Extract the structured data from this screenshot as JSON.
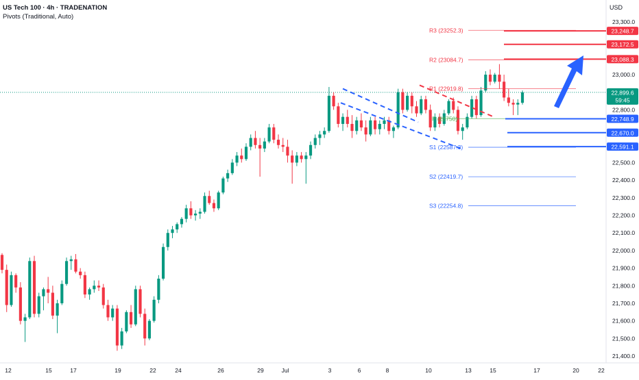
{
  "legend": {
    "title": "US Tech 100 · 4h · TRADENATION",
    "subtitle": "Pivots (Traditional, Auto)"
  },
  "currency_label": "USD",
  "last_price": "22,899.6",
  "countdown": "59:45",
  "colors": {
    "up": "#089981",
    "down": "#f23645",
    "resistance": "#f23645",
    "support": "#2962ff",
    "pivot": "#4caf50",
    "arrow": "#2962ff",
    "axis_text": "#131722"
  },
  "chart_data": {
    "type": "candlestick",
    "title": "US Tech 100 · 4h · TRADENATION",
    "ylim": [
      21390,
      23330
    ],
    "y_ticks": [
      21400,
      21500,
      21600,
      21700,
      21800,
      21900,
      22000,
      22100,
      22200,
      22300,
      22400,
      22500,
      22600,
      22700,
      22800,
      22900,
      23000,
      23100,
      23200,
      23300
    ],
    "y_tick_labels": [
      "21,400.0",
      "21,500.0",
      "21,600.0",
      "21,700.0",
      "21,800.0",
      "21,900.0",
      "22,000.0",
      "22,100.0",
      "22,200.0",
      "22,300.0",
      "22,400.0",
      "22,500.0",
      "22,600.0",
      "22,700.0",
      "22,800.0",
      "22,900.0",
      "23,000.0",
      "23,100.0",
      "23,200.0",
      "23,300.0"
    ],
    "x_labels": [
      "12",
      "15",
      "17",
      "19",
      "22",
      "24",
      "26",
      "29",
      "Jul",
      "3",
      "6",
      "8",
      "10",
      "13",
      "15",
      "17",
      "20",
      "22"
    ],
    "candles": [
      {
        "o": 21975,
        "h": 21985,
        "l": 21870,
        "c": 21890
      },
      {
        "o": 21890,
        "h": 21920,
        "l": 21650,
        "c": 21690
      },
      {
        "o": 21690,
        "h": 21880,
        "l": 21680,
        "c": 21860
      },
      {
        "o": 21860,
        "h": 21870,
        "l": 21760,
        "c": 21790
      },
      {
        "o": 21790,
        "h": 21820,
        "l": 21580,
        "c": 21600
      },
      {
        "o": 21600,
        "h": 21640,
        "l": 21480,
        "c": 21620
      },
      {
        "o": 21620,
        "h": 21960,
        "l": 21610,
        "c": 21940
      },
      {
        "o": 21940,
        "h": 21970,
        "l": 21620,
        "c": 21640
      },
      {
        "o": 21640,
        "h": 21760,
        "l": 21620,
        "c": 21740
      },
      {
        "o": 21740,
        "h": 21790,
        "l": 21660,
        "c": 21780
      },
      {
        "o": 21780,
        "h": 21850,
        "l": 21700,
        "c": 21760
      },
      {
        "o": 21760,
        "h": 21800,
        "l": 21610,
        "c": 21630
      },
      {
        "o": 21630,
        "h": 21720,
        "l": 21530,
        "c": 21700
      },
      {
        "o": 21700,
        "h": 21830,
        "l": 21690,
        "c": 21810
      },
      {
        "o": 21810,
        "h": 21960,
        "l": 21800,
        "c": 21940
      },
      {
        "o": 21940,
        "h": 21970,
        "l": 21890,
        "c": 21950
      },
      {
        "o": 21950,
        "h": 21980,
        "l": 21870,
        "c": 21880
      },
      {
        "o": 21880,
        "h": 21900,
        "l": 21840,
        "c": 21860
      },
      {
        "o": 21860,
        "h": 21880,
        "l": 21730,
        "c": 21750
      },
      {
        "o": 21750,
        "h": 21790,
        "l": 21720,
        "c": 21780
      },
      {
        "o": 21780,
        "h": 21830,
        "l": 21760,
        "c": 21800
      },
      {
        "o": 21800,
        "h": 21830,
        "l": 21770,
        "c": 21790
      },
      {
        "o": 21790,
        "h": 21810,
        "l": 21670,
        "c": 21690
      },
      {
        "o": 21690,
        "h": 21720,
        "l": 21600,
        "c": 21620
      },
      {
        "o": 21620,
        "h": 21690,
        "l": 21600,
        "c": 21670
      },
      {
        "o": 21670,
        "h": 21690,
        "l": 21430,
        "c": 21460
      },
      {
        "o": 21460,
        "h": 21560,
        "l": 21440,
        "c": 21540
      },
      {
        "o": 21540,
        "h": 21660,
        "l": 21530,
        "c": 21650
      },
      {
        "o": 21650,
        "h": 21690,
        "l": 21560,
        "c": 21580
      },
      {
        "o": 21580,
        "h": 21800,
        "l": 21570,
        "c": 21780
      },
      {
        "o": 21780,
        "h": 21800,
        "l": 21620,
        "c": 21640
      },
      {
        "o": 21640,
        "h": 21670,
        "l": 21460,
        "c": 21500
      },
      {
        "o": 21500,
        "h": 21610,
        "l": 21490,
        "c": 21600
      },
      {
        "o": 21600,
        "h": 21740,
        "l": 21590,
        "c": 21720
      },
      {
        "o": 21720,
        "h": 21860,
        "l": 21700,
        "c": 21840
      },
      {
        "o": 21840,
        "h": 22040,
        "l": 21830,
        "c": 22020
      },
      {
        "o": 22020,
        "h": 22120,
        "l": 22000,
        "c": 22100
      },
      {
        "o": 22100,
        "h": 22140,
        "l": 22070,
        "c": 22120
      },
      {
        "o": 22120,
        "h": 22160,
        "l": 22100,
        "c": 22150
      },
      {
        "o": 22150,
        "h": 22190,
        "l": 22130,
        "c": 22180
      },
      {
        "o": 22180,
        "h": 22260,
        "l": 22160,
        "c": 22240
      },
      {
        "o": 22240,
        "h": 22280,
        "l": 22180,
        "c": 22200
      },
      {
        "o": 22200,
        "h": 22230,
        "l": 22170,
        "c": 22210
      },
      {
        "o": 22210,
        "h": 22240,
        "l": 22180,
        "c": 22220
      },
      {
        "o": 22220,
        "h": 22330,
        "l": 22210,
        "c": 22310
      },
      {
        "o": 22310,
        "h": 22340,
        "l": 22260,
        "c": 22270
      },
      {
        "o": 22270,
        "h": 22290,
        "l": 22220,
        "c": 22240
      },
      {
        "o": 22240,
        "h": 22340,
        "l": 22230,
        "c": 22330
      },
      {
        "o": 22330,
        "h": 22420,
        "l": 22320,
        "c": 22410
      },
      {
        "o": 22410,
        "h": 22460,
        "l": 22390,
        "c": 22440
      },
      {
        "o": 22440,
        "h": 22520,
        "l": 22430,
        "c": 22500
      },
      {
        "o": 22500,
        "h": 22560,
        "l": 22480,
        "c": 22540
      },
      {
        "o": 22540,
        "h": 22580,
        "l": 22500,
        "c": 22520
      },
      {
        "o": 22520,
        "h": 22610,
        "l": 22510,
        "c": 22590
      },
      {
        "o": 22590,
        "h": 22660,
        "l": 22570,
        "c": 22640
      },
      {
        "o": 22640,
        "h": 22680,
        "l": 22580,
        "c": 22600
      },
      {
        "o": 22600,
        "h": 22640,
        "l": 22420,
        "c": 22580
      },
      {
        "o": 22580,
        "h": 22640,
        "l": 22560,
        "c": 22620
      },
      {
        "o": 22620,
        "h": 22720,
        "l": 22610,
        "c": 22700
      },
      {
        "o": 22700,
        "h": 22720,
        "l": 22610,
        "c": 22630
      },
      {
        "o": 22630,
        "h": 22660,
        "l": 22580,
        "c": 22600
      },
      {
        "o": 22600,
        "h": 22640,
        "l": 22560,
        "c": 22590
      },
      {
        "o": 22590,
        "h": 22630,
        "l": 22500,
        "c": 22540
      },
      {
        "o": 22540,
        "h": 22570,
        "l": 22380,
        "c": 22500
      },
      {
        "o": 22500,
        "h": 22560,
        "l": 22480,
        "c": 22540
      },
      {
        "o": 22540,
        "h": 22560,
        "l": 22500,
        "c": 22520
      },
      {
        "o": 22520,
        "h": 22560,
        "l": 22380,
        "c": 22540
      },
      {
        "o": 22540,
        "h": 22620,
        "l": 22520,
        "c": 22600
      },
      {
        "o": 22600,
        "h": 22660,
        "l": 22580,
        "c": 22640
      },
      {
        "o": 22640,
        "h": 22680,
        "l": 22600,
        "c": 22660
      },
      {
        "o": 22660,
        "h": 22700,
        "l": 22640,
        "c": 22680
      },
      {
        "o": 22680,
        "h": 22930,
        "l": 22670,
        "c": 22880
      },
      {
        "o": 22880,
        "h": 22900,
        "l": 22800,
        "c": 22820
      },
      {
        "o": 22820,
        "h": 22840,
        "l": 22700,
        "c": 22720
      },
      {
        "o": 22720,
        "h": 22780,
        "l": 22680,
        "c": 22760
      },
      {
        "o": 22760,
        "h": 22800,
        "l": 22700,
        "c": 22720
      },
      {
        "o": 22720,
        "h": 22770,
        "l": 22640,
        "c": 22680
      },
      {
        "o": 22680,
        "h": 22760,
        "l": 22660,
        "c": 22740
      },
      {
        "o": 22740,
        "h": 22780,
        "l": 22680,
        "c": 22700
      },
      {
        "o": 22700,
        "h": 22740,
        "l": 22620,
        "c": 22660
      },
      {
        "o": 22660,
        "h": 22760,
        "l": 22650,
        "c": 22740
      },
      {
        "o": 22740,
        "h": 22760,
        "l": 22660,
        "c": 22690
      },
      {
        "o": 22690,
        "h": 22740,
        "l": 22660,
        "c": 22720
      },
      {
        "o": 22720,
        "h": 22760,
        "l": 22690,
        "c": 22740
      },
      {
        "o": 22740,
        "h": 22760,
        "l": 22660,
        "c": 22680
      },
      {
        "o": 22680,
        "h": 22710,
        "l": 22640,
        "c": 22700
      },
      {
        "o": 22700,
        "h": 22920,
        "l": 22690,
        "c": 22900
      },
      {
        "o": 22900,
        "h": 22920,
        "l": 22780,
        "c": 22800
      },
      {
        "o": 22800,
        "h": 22900,
        "l": 22790,
        "c": 22880
      },
      {
        "o": 22880,
        "h": 22900,
        "l": 22780,
        "c": 22820
      },
      {
        "o": 22820,
        "h": 22850,
        "l": 22760,
        "c": 22780
      },
      {
        "o": 22780,
        "h": 22880,
        "l": 22770,
        "c": 22860
      },
      {
        "o": 22860,
        "h": 22880,
        "l": 22780,
        "c": 22800
      },
      {
        "o": 22800,
        "h": 22830,
        "l": 22680,
        "c": 22700
      },
      {
        "o": 22700,
        "h": 22780,
        "l": 22680,
        "c": 22760
      },
      {
        "o": 22760,
        "h": 22780,
        "l": 22700,
        "c": 22720
      },
      {
        "o": 22720,
        "h": 22800,
        "l": 22710,
        "c": 22780
      },
      {
        "o": 22780,
        "h": 22860,
        "l": 22770,
        "c": 22850
      },
      {
        "o": 22850,
        "h": 22870,
        "l": 22780,
        "c": 22800
      },
      {
        "o": 22800,
        "h": 22820,
        "l": 22660,
        "c": 22680
      },
      {
        "o": 22680,
        "h": 22720,
        "l": 22630,
        "c": 22700
      },
      {
        "o": 22700,
        "h": 22780,
        "l": 22690,
        "c": 22760
      },
      {
        "o": 22760,
        "h": 22880,
        "l": 22750,
        "c": 22860
      },
      {
        "o": 22860,
        "h": 22880,
        "l": 22750,
        "c": 22770
      },
      {
        "o": 22770,
        "h": 22930,
        "l": 22760,
        "c": 22910
      },
      {
        "o": 22910,
        "h": 23020,
        "l": 22900,
        "c": 23000
      },
      {
        "o": 23000,
        "h": 23030,
        "l": 22940,
        "c": 22960
      },
      {
        "o": 22960,
        "h": 23010,
        "l": 22950,
        "c": 23000
      },
      {
        "o": 23000,
        "h": 23060,
        "l": 22920,
        "c": 22960
      },
      {
        "o": 22960,
        "h": 23000,
        "l": 22850,
        "c": 22870
      },
      {
        "o": 22870,
        "h": 22920,
        "l": 22820,
        "c": 22840
      },
      {
        "o": 22840,
        "h": 22860,
        "l": 22770,
        "c": 22830
      },
      {
        "o": 22830,
        "h": 22860,
        "l": 22770,
        "c": 22840
      },
      {
        "o": 22840,
        "h": 22910,
        "l": 22830,
        "c": 22899.6
      }
    ],
    "pivots": [
      {
        "label": "R3",
        "value": 23252.3,
        "text": "R3 (23252.3)"
      },
      {
        "label": "R2",
        "value": 23084.7,
        "text": "R2 (23084.7)"
      },
      {
        "label": "R1",
        "value": 22919.8,
        "text": "R1 (22919.8)"
      },
      {
        "label": "P",
        "value": 22750,
        "text": "P (22750)"
      },
      {
        "label": "S1",
        "value": 22587.3,
        "text": "S1 (22587.3)"
      },
      {
        "label": "S2",
        "value": 22419.7,
        "text": "S2 (22419.7)"
      },
      {
        "label": "S3",
        "value": 22254.8,
        "text": "S3 (22254.8)"
      }
    ],
    "resistance_levels": [
      {
        "value": 23248.7,
        "label": "23,248.7"
      },
      {
        "value": 23172.5,
        "label": "23,172.5"
      },
      {
        "value": 23088.3,
        "label": "23,088.3"
      }
    ],
    "support_levels": [
      {
        "value": 22748.9,
        "label": "22,748.9"
      },
      {
        "value": 22670.0,
        "label": "22,670.0"
      },
      {
        "value": 22591.1,
        "label": "22,591.1"
      }
    ],
    "last_price_value": 22899.6,
    "grid": false
  }
}
